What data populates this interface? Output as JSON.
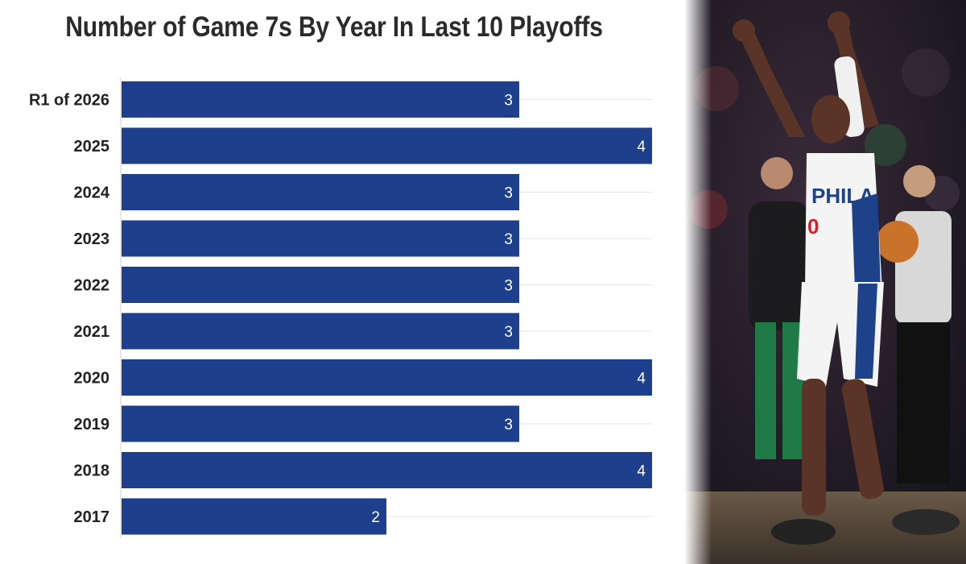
{
  "chart_data": {
    "type": "bar",
    "orientation": "horizontal",
    "title": "Number of Game 7s By Year In Last 10 Playoffs",
    "xlabel": "",
    "ylabel": "",
    "categories": [
      "R1 of 2026",
      "2025",
      "2024",
      "2023",
      "2022",
      "2021",
      "2020",
      "2019",
      "2018",
      "2017"
    ],
    "values": [
      3,
      4,
      3,
      3,
      3,
      3,
      4,
      3,
      4,
      2
    ],
    "xlim": [
      0,
      4
    ],
    "grid": true,
    "data_labels": true,
    "bar_color": "#1e3f8b"
  },
  "photo": {
    "icon": "basketball-player-celebrating-photo",
    "jersey_text": "PHILA",
    "jersey_number": "0",
    "colors": {
      "jersey": "#f4f4f4",
      "trim": "#1d428a",
      "accent": "#d6202b",
      "backdrop": "#16161c"
    }
  }
}
